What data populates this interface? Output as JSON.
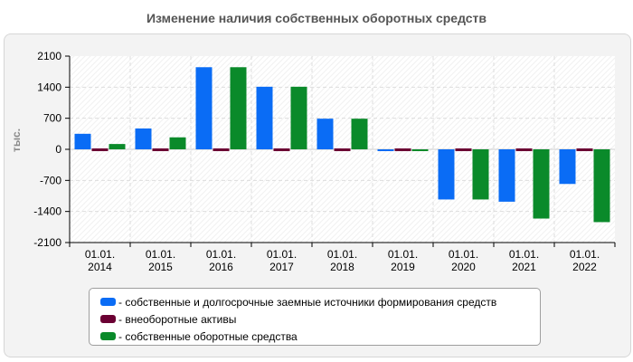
{
  "title": "Изменение наличия собственных оборотных средств",
  "colors": {
    "series1": "#0a6cf5",
    "series2": "#6b0033",
    "series3": "#0a8a2a"
  },
  "chart_data": {
    "type": "bar",
    "title": "Изменение наличия собственных оборотных средств",
    "ylabel": "тыс.",
    "xlabel": "",
    "ylim": [
      -2100,
      2100
    ],
    "yticks": [
      2100,
      1400,
      700,
      0,
      -700,
      -1400,
      -2100
    ],
    "grid": true,
    "legend_position": "bottom",
    "categories": [
      [
        "01.01.",
        "2014"
      ],
      [
        "01.01.",
        "2015"
      ],
      [
        "01.01.",
        "2016"
      ],
      [
        "01.01.",
        "2017"
      ],
      [
        "01.01.",
        "2018"
      ],
      [
        "01.01.",
        "2019"
      ],
      [
        "01.01.",
        "2020"
      ],
      [
        "01.01.",
        "2021"
      ],
      [
        "01.01.",
        "2022"
      ]
    ],
    "series": [
      {
        "name": "- собственные и долгосрочные заемные источники формирования средств",
        "color": "#0a6cf5",
        "values": [
          350,
          470,
          1850,
          1410,
          690,
          -40,
          -1130,
          -1180,
          -780
        ]
      },
      {
        "name": "- внеоборотные активы",
        "color": "#6b0033",
        "values": [
          30,
          30,
          30,
          30,
          30,
          30,
          30,
          30,
          30
        ]
      },
      {
        "name": "- собственные оборотные средства",
        "color": "#0a8a2a",
        "values": [
          120,
          270,
          1850,
          1410,
          690,
          -40,
          -1130,
          -1560,
          -1640
        ]
      }
    ]
  }
}
